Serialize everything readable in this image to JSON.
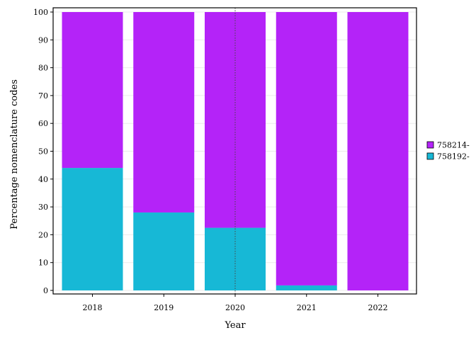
{
  "chart_data": {
    "type": "bar",
    "stacked": true,
    "categories": [
      "2018",
      "2019",
      "2020",
      "2021",
      "2022"
    ],
    "series": [
      {
        "name": "758192-",
        "color": "#17b8d6",
        "values": [
          44,
          28,
          22.5,
          1.8,
          0
        ]
      },
      {
        "name": "758214-",
        "color": "#b423f8",
        "values": [
          56,
          72,
          77.5,
          98.2,
          100
        ]
      }
    ],
    "legend_order": [
      "758214-",
      "758192-"
    ],
    "title": "",
    "xlabel": "Year",
    "ylabel": "Percentage nomenclature codes",
    "ylim": [
      0,
      100
    ],
    "yticks": [
      0,
      10,
      20,
      30,
      40,
      50,
      60,
      70,
      80,
      90,
      100
    ],
    "reference_line": {
      "x": "2020",
      "style": "dotted"
    },
    "grid": true,
    "legend_position": "right"
  }
}
